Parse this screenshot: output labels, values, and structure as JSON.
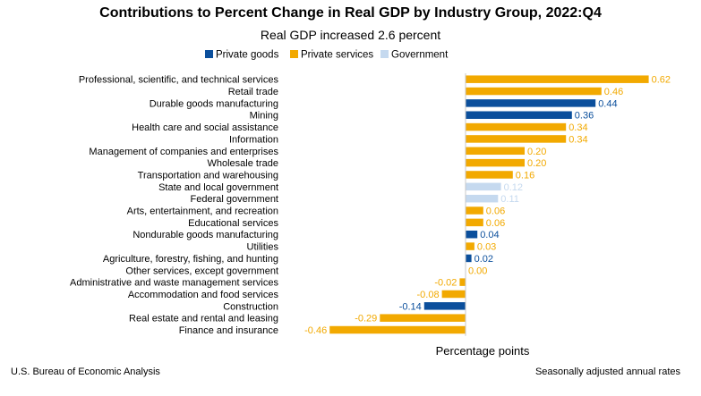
{
  "chart_data": {
    "type": "bar",
    "orientation": "horizontal",
    "title": "Contributions to Percent Change in Real GDP by Industry Group, 2022:Q4",
    "subtitle": "Real GDP increased 2.6 percent",
    "xlabel": "Percentage points",
    "xlim": [
      -0.5,
      0.65
    ],
    "grid": false,
    "legend_position": "top",
    "legend": [
      {
        "name": "Private goods",
        "color": "#0b4f9c"
      },
      {
        "name": "Private services",
        "color": "#f2a900"
      },
      {
        "name": "Government",
        "color": "#c5d9ef"
      }
    ],
    "categories": [
      "Professional, scientific, and technical services",
      "Retail trade",
      "Durable goods manufacturing",
      "Mining",
      "Health care and social assistance",
      "Information",
      "Management of companies and enterprises",
      "Wholesale trade",
      "Transportation and warehousing",
      "State and local government",
      "Federal government",
      "Arts, entertainment, and recreation",
      "Educational services",
      "Nondurable goods manufacturing",
      "Utilities",
      "Agriculture, forestry, fishing, and hunting",
      "Other services, except government",
      "Administrative and waste management services",
      "Accommodation and food services",
      "Construction",
      "Real estate and rental and leasing",
      "Finance and insurance"
    ],
    "values": [
      0.62,
      0.46,
      0.44,
      0.36,
      0.34,
      0.34,
      0.2,
      0.2,
      0.16,
      0.12,
      0.11,
      0.06,
      0.06,
      0.04,
      0.03,
      0.02,
      0.0,
      -0.02,
      -0.08,
      -0.14,
      -0.29,
      -0.46
    ],
    "value_labels": [
      "0.62",
      "0.46",
      "0.44",
      "0.36",
      "0.34",
      "0.34",
      "0.20",
      "0.20",
      "0.16",
      "0.12",
      "0.11",
      "0.06",
      "0.06",
      "0.04",
      "0.03",
      "0.02",
      "0.00",
      "-0.02",
      "-0.08",
      "-0.14",
      "-0.29",
      "-0.46"
    ],
    "groups": [
      1,
      1,
      0,
      0,
      1,
      1,
      1,
      1,
      1,
      2,
      2,
      1,
      1,
      0,
      1,
      0,
      1,
      1,
      1,
      0,
      1,
      1
    ]
  },
  "footer": {
    "source": "U.S. Bureau of Economic Analysis",
    "note": "Seasonally adjusted annual rates"
  }
}
